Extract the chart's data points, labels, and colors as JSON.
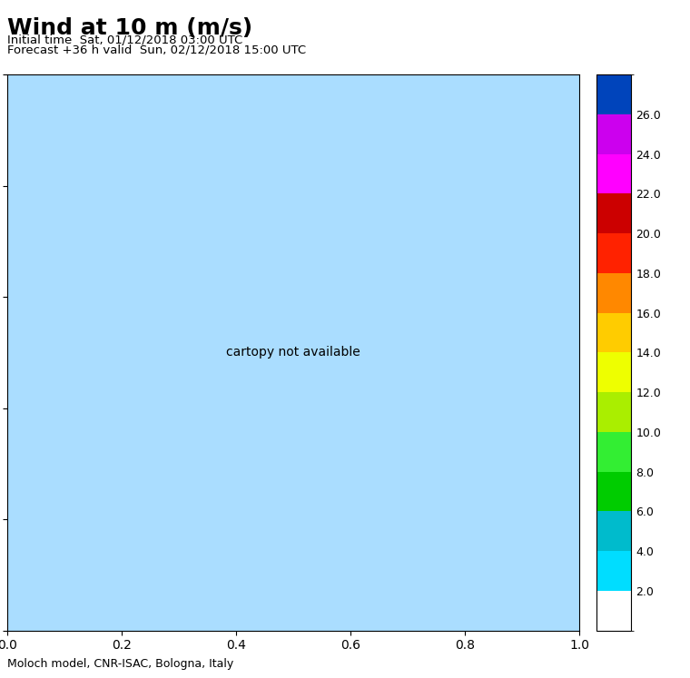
{
  "title": "Wind at 10 m (m/s)",
  "subtitle1": "Initial time  Sat, 01/12/2018 03:00 UTC",
  "subtitle2": "Forecast +36 h valid  Sun, 02/12/2018 15:00 UTC",
  "footer": "Moloch model, CNR-ISAC, Bologna, Italy",
  "colorbar_levels": [
    2.0,
    4.0,
    6.0,
    8.0,
    10.0,
    12.0,
    14.0,
    16.0,
    18.0,
    20.0,
    22.0,
    24.0,
    26.0
  ],
  "colorbar_colors_fill": [
    "#ffffff",
    "#00ddff",
    "#00bbcc",
    "#00cc00",
    "#33ee33",
    "#aaee00",
    "#eeff00",
    "#ffcc00",
    "#ff8800",
    "#ff2200",
    "#cc0000",
    "#ff00ff",
    "#cc00ee",
    "#8800cc",
    "#0044bb"
  ],
  "lon_min": -10.0,
  "lon_max": 42.0,
  "lat_min": 27.0,
  "lat_max": 57.0,
  "map_bg": "#ffffff",
  "fig_bg": "#ffffff",
  "title_fontsize": 18,
  "subtitle_fontsize": 9.5,
  "footer_fontsize": 9,
  "colorbar_label_fontsize": 9,
  "figsize": [
    7.6,
    7.47
  ],
  "dpi": 100
}
